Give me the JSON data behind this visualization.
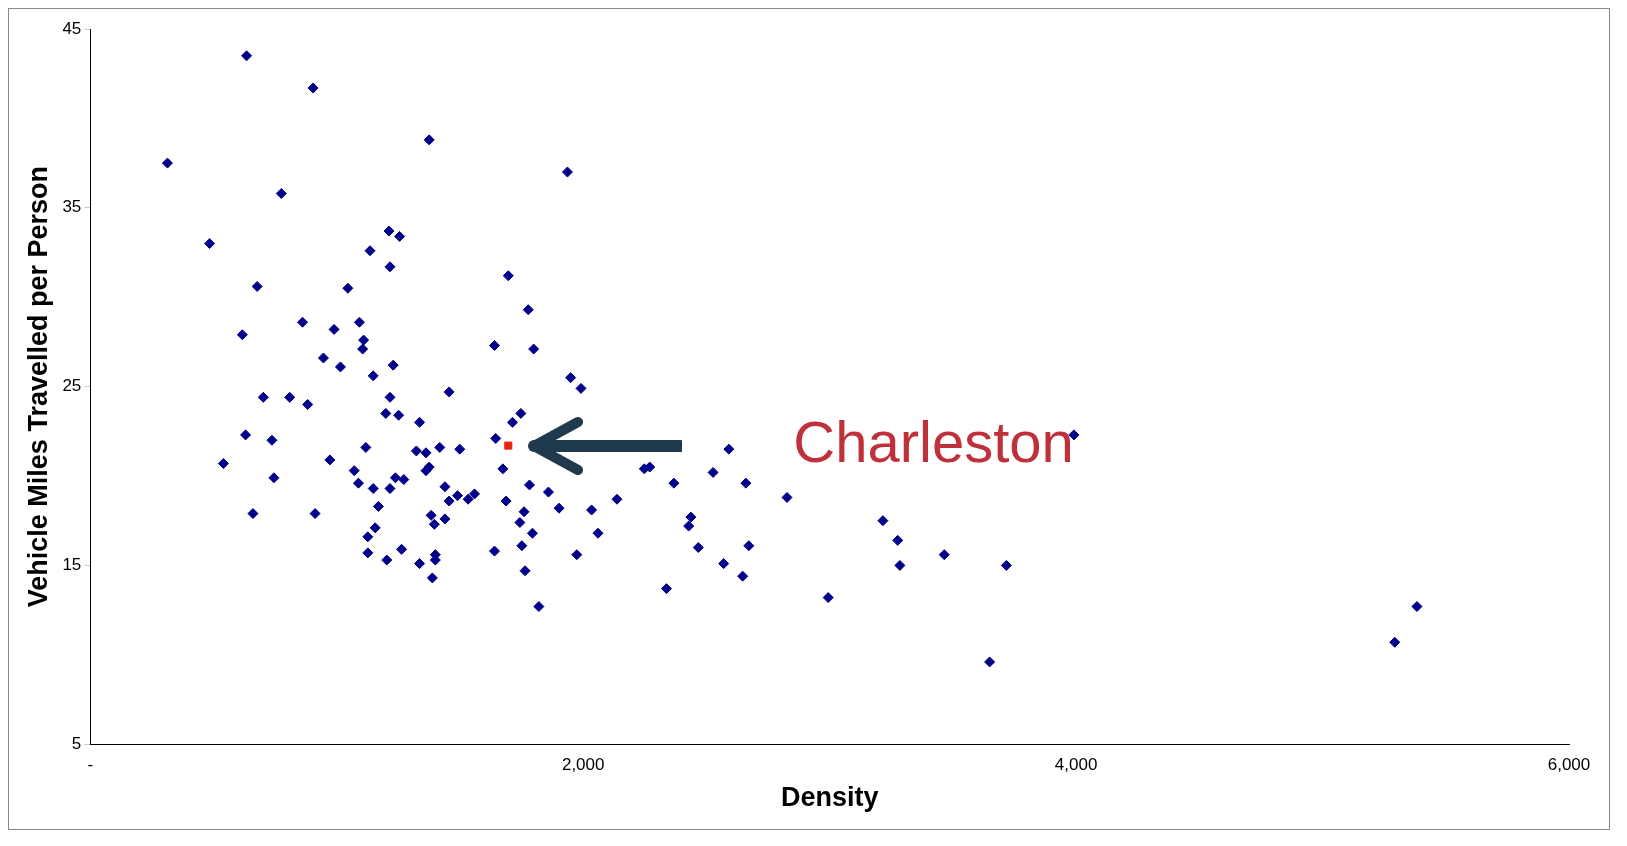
{
  "chart_data": {
    "type": "scatter",
    "xlabel": "Density",
    "ylabel": "Vehicle Miles Travelled per Person",
    "xlim": [
      0,
      6000
    ],
    "xticks": [
      {
        "value": 0,
        "label": "-"
      },
      {
        "value": 2000,
        "label": "2,000"
      },
      {
        "value": 4000,
        "label": "4,000"
      },
      {
        "value": 6000,
        "label": "6,000"
      }
    ],
    "ylim": [
      5,
      45
    ],
    "yticks": [
      5,
      15,
      25,
      35,
      45
    ],
    "grid": false,
    "legend": false,
    "series": [
      {
        "color": "#00008b",
        "marker": "diamond",
        "x": [
          313,
          634,
          904,
          1375,
          1936,
          484,
          775,
          677,
          617,
          861,
          989,
          946,
          1015,
          1045,
          1092,
          1109,
          1105,
          1135,
          1212,
          1255,
          1216,
          1229,
          1148,
          1216,
          1199,
          1251,
          702,
          809,
          882,
          630,
          737,
          540,
          745,
          660,
          912,
          972,
          1071,
          1088,
          1118,
          1148,
          1169,
          1156,
          1126,
          1126,
          1203,
          1216,
          1238,
          1272,
          1263,
          1323,
          1336,
          1362,
          1362,
          1375,
          1418,
          1499,
          1456,
          1383,
          1396,
          1400,
          1400,
          1388,
          1336,
          1439,
          1456,
          1490,
          1439,
          1533,
          1559,
          1640,
          1645,
          1696,
          1674,
          1687,
          1640,
          1713,
          1747,
          1777,
          1799,
          1782,
          1760,
          1743,
          1794,
          1751,
          1764,
          1820,
          1859,
          1902,
          1949,
          1991,
          1974,
          2034,
          2060,
          2137,
          2248,
          2270,
          2368,
          2338,
          2428,
          2437,
          2467,
          2527,
          2591,
          2570,
          2647,
          2660,
          2672,
          2827,
          2994,
          3216,
          3276,
          3285,
          3465,
          3649,
          3717,
          3991,
          5293,
          5383
        ],
        "values": [
          37.5,
          43.5,
          41.7,
          38.8,
          37.0,
          33.0,
          35.8,
          30.6,
          27.9,
          28.6,
          28.2,
          26.6,
          26.1,
          30.5,
          28.6,
          27.6,
          27.1,
          32.6,
          33.7,
          33.4,
          31.7,
          26.2,
          25.6,
          24.4,
          23.5,
          23.4,
          24.4,
          24.4,
          24.0,
          22.3,
          22.0,
          20.7,
          19.9,
          17.9,
          17.9,
          20.9,
          20.3,
          19.6,
          21.6,
          19.3,
          18.3,
          17.1,
          16.6,
          15.7,
          15.3,
          19.3,
          19.9,
          19.8,
          15.9,
          21.4,
          23.0,
          21.3,
          20.3,
          20.5,
          21.6,
          21.5,
          24.7,
          17.8,
          17.3,
          15.6,
          15.3,
          14.3,
          15.1,
          19.4,
          18.6,
          18.9,
          17.6,
          18.7,
          19.0,
          27.3,
          22.1,
          31.2,
          20.4,
          18.6,
          15.8,
          23.0,
          23.5,
          29.3,
          27.1,
          19.5,
          18.0,
          17.4,
          16.8,
          16.1,
          14.7,
          12.7,
          19.1,
          18.2,
          25.5,
          24.9,
          15.6,
          18.1,
          16.8,
          18.7,
          20.4,
          20.5,
          19.6,
          13.7,
          17.2,
          17.7,
          16.0,
          20.2,
          21.5,
          15.1,
          14.4,
          19.6,
          16.1,
          18.8,
          13.2,
          17.5,
          16.4,
          15.0,
          15.6,
          9.6,
          15.0,
          22.3,
          10.7,
          12.7
        ]
      },
      {
        "color": "#e8230c",
        "marker": "square",
        "x": [
          1696
        ],
        "values": [
          21.7
        ]
      }
    ],
    "annotations": [
      "Charleston"
    ]
  }
}
